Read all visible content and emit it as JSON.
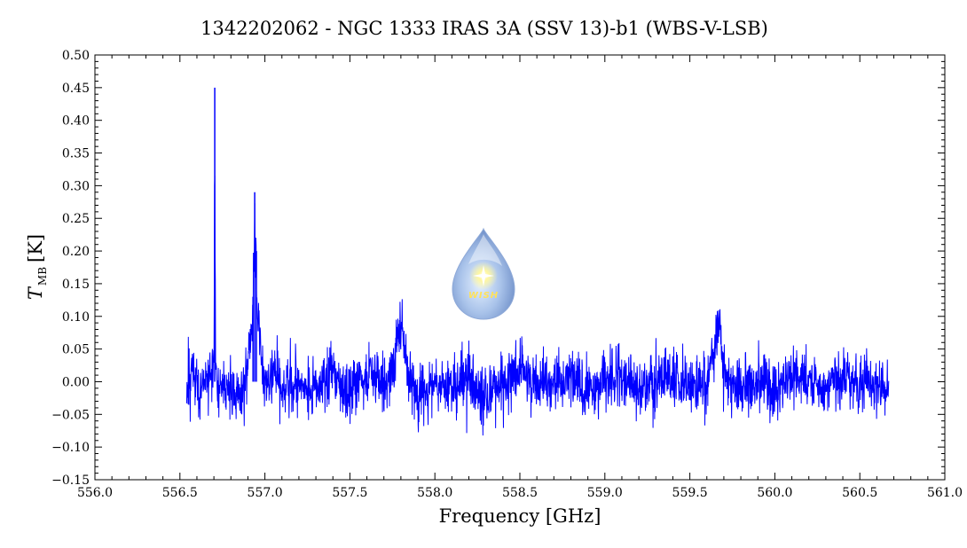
{
  "chart_data": {
    "type": "line",
    "title": "1342202062 - NGC 1333 IRAS 3A (SSV 13)-b1 (WBS-V-LSB)",
    "xlabel": "Frequency [GHz]",
    "ylabel": "T",
    "ylabel_sub": "MB",
    "ylabel_unit": "[K]",
    "xlim": [
      556.0,
      561.0
    ],
    "ylim": [
      -0.15,
      0.5
    ],
    "x_ticks": [
      {
        "value": 556.0,
        "label": "556.0"
      },
      {
        "value": 556.5,
        "label": "556.5"
      },
      {
        "value": 557.0,
        "label": "557.0"
      },
      {
        "value": 557.5,
        "label": "557.5"
      },
      {
        "value": 558.0,
        "label": "558.0"
      },
      {
        "value": 558.5,
        "label": "558.5"
      },
      {
        "value": 559.0,
        "label": "559.0"
      },
      {
        "value": 559.5,
        "label": "559.5"
      },
      {
        "value": 560.0,
        "label": "560.0"
      },
      {
        "value": 560.5,
        "label": "560.5"
      },
      {
        "value": 561.0,
        "label": "561.0"
      }
    ],
    "y_ticks": [
      {
        "value": -0.15,
        "label": "−0.15"
      },
      {
        "value": -0.1,
        "label": "−0.10"
      },
      {
        "value": -0.05,
        "label": "−0.05"
      },
      {
        "value": 0.0,
        "label": "0.00"
      },
      {
        "value": 0.05,
        "label": "0.05"
      },
      {
        "value": 0.1,
        "label": "0.10"
      },
      {
        "value": 0.15,
        "label": "0.15"
      },
      {
        "value": 0.2,
        "label": "0.20"
      },
      {
        "value": 0.25,
        "label": "0.25"
      },
      {
        "value": 0.3,
        "label": "0.30"
      },
      {
        "value": 0.35,
        "label": "0.35"
      },
      {
        "value": 0.4,
        "label": "0.40"
      },
      {
        "value": 0.45,
        "label": "0.45"
      },
      {
        "value": 0.5,
        "label": "0.50"
      }
    ],
    "grid": false,
    "series": [
      {
        "color": "#0000ff",
        "x": [
          556.54,
          556.58,
          556.62,
          556.66,
          556.69,
          556.7,
          556.705,
          556.71,
          556.72,
          556.75,
          556.8,
          556.85,
          556.88,
          556.9,
          556.92,
          556.93,
          556.94,
          556.95,
          556.96,
          556.98,
          557.0,
          557.05,
          557.1,
          557.2,
          557.3,
          557.4,
          557.5,
          557.6,
          557.7,
          557.75,
          557.8,
          557.82,
          557.85,
          557.9,
          558.0,
          558.1,
          558.2,
          558.3,
          558.4,
          558.5,
          558.6,
          558.7,
          558.8,
          558.9,
          559.0,
          559.1,
          559.2,
          559.3,
          559.4,
          559.5,
          559.6,
          559.68,
          559.7,
          559.8,
          559.9,
          560.0,
          560.1,
          560.2,
          560.3,
          560.4,
          560.5,
          560.6,
          560.67
        ],
        "y": [
          -0.01,
          0.01,
          -0.02,
          0.0,
          0.01,
          0.02,
          0.45,
          0.03,
          -0.02,
          0.0,
          -0.01,
          -0.02,
          0.0,
          0.04,
          0.08,
          0.13,
          0.29,
          0.2,
          0.1,
          0.03,
          0.0,
          0.01,
          -0.01,
          0.0,
          -0.01,
          0.01,
          -0.02,
          0.01,
          0.0,
          0.02,
          0.1,
          0.05,
          0.01,
          -0.02,
          0.0,
          -0.01,
          0.01,
          -0.03,
          0.0,
          0.02,
          -0.01,
          0.0,
          0.01,
          -0.02,
          0.0,
          0.01,
          -0.01,
          0.0,
          0.01,
          -0.01,
          0.0,
          0.09,
          0.01,
          -0.01,
          0.0,
          -0.02,
          0.01,
          0.0,
          -0.01,
          0.01,
          0.0,
          -0.01,
          0.0
        ]
      }
    ]
  },
  "logo": {
    "text": "WISH"
  }
}
